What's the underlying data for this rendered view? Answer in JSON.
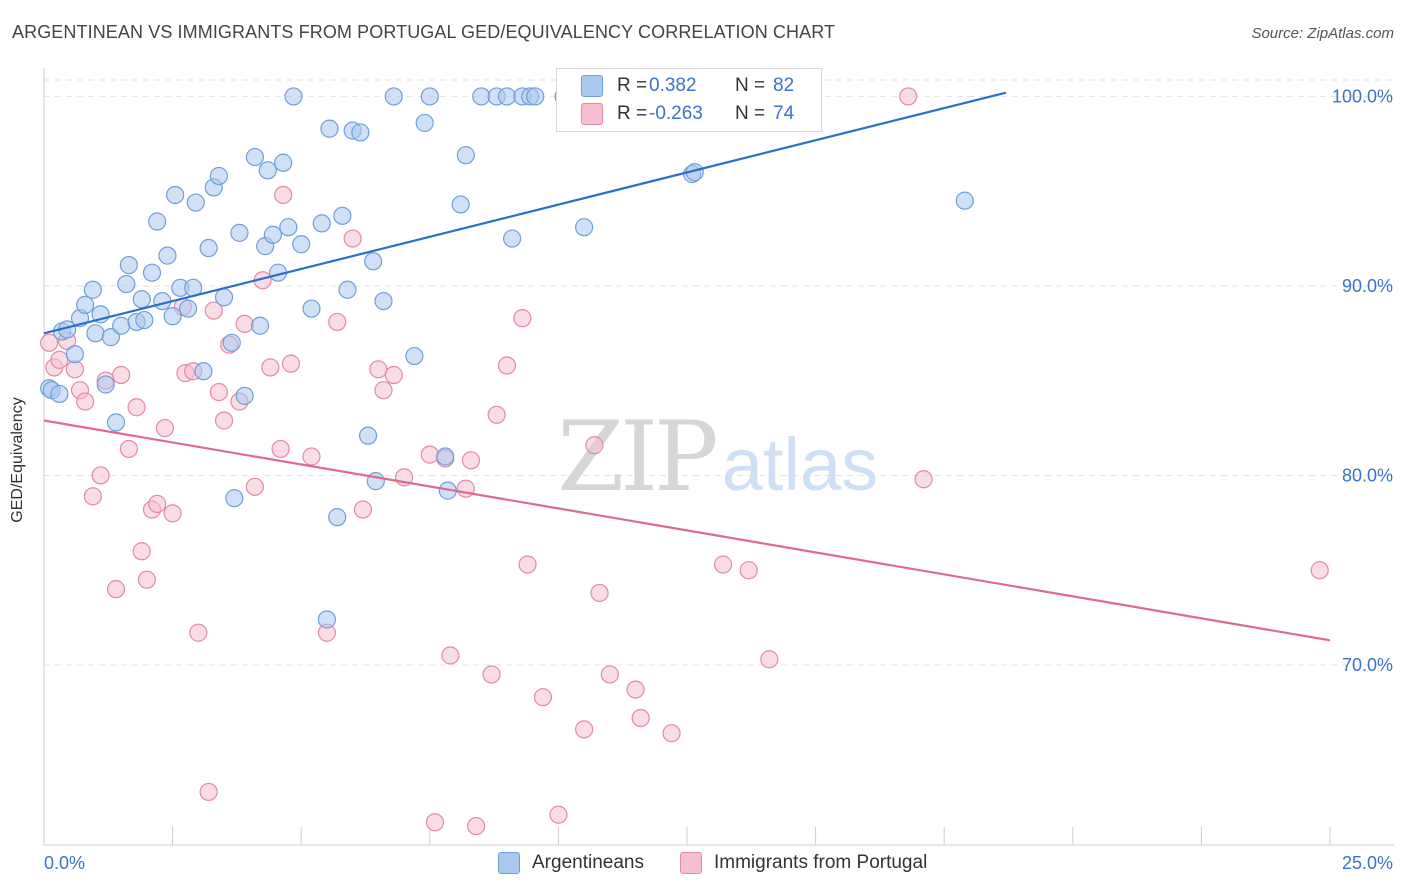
{
  "header": {
    "title": "ARGENTINEAN VS IMMIGRANTS FROM PORTUGAL GED/EQUIVALENCY CORRELATION CHART",
    "source": "Source: ZipAtlas.com"
  },
  "legend_top": {
    "rows": [
      {
        "r_label": "R =",
        "r_value": "0.382",
        "n_label": "N =",
        "n_value": "82"
      },
      {
        "r_label": "R =",
        "r_value": "-0.263",
        "n_label": "N =",
        "n_value": "74"
      }
    ]
  },
  "legend_bottom": {
    "items": [
      {
        "label": "Argentineans"
      },
      {
        "label": "Immigrants from Portugal"
      }
    ]
  },
  "colors": {
    "blue_fill": "#a9c8f0",
    "blue_stroke": "#6f9fd8",
    "blue_line": "#2a6fc9",
    "pink_fill": "#f6bfd0",
    "pink_stroke": "#e38aa6",
    "pink_line": "#e0698f",
    "tick_label": "#3a73c8",
    "grid": "#e3e3e3"
  },
  "chart_data": {
    "type": "scatter",
    "title": "ARGENTINEAN VS IMMIGRANTS FROM PORTUGAL GED/EQUIVALENCY CORRELATION CHART",
    "xlabel": "",
    "ylabel": "GED/Equivalency",
    "xlim": [
      0,
      25
    ],
    "ylim": [
      60.5,
      101.5
    ],
    "x_tick_labels": [
      "0.0%",
      "25.0%"
    ],
    "y_ticks": [
      70,
      80,
      90,
      100
    ],
    "y_tick_labels": [
      "70.0%",
      "80.0%",
      "90.0%",
      "100.0%"
    ],
    "grid": true,
    "legend_placement": "top-center",
    "watermark": "ZIPatlas",
    "series": [
      {
        "name": "Argentineans",
        "r": 0.382,
        "n": 82,
        "trend": {
          "x": [
            0,
            18.7
          ],
          "y": [
            87.5,
            100.2
          ]
        },
        "points": [
          [
            0.1,
            84.6
          ],
          [
            0.15,
            84.5
          ],
          [
            0.3,
            84.3
          ],
          [
            0.35,
            87.6
          ],
          [
            0.45,
            87.7
          ],
          [
            0.6,
            86.4
          ],
          [
            0.7,
            88.3
          ],
          [
            0.8,
            89.0
          ],
          [
            0.95,
            89.8
          ],
          [
            1.0,
            87.5
          ],
          [
            1.1,
            88.5
          ],
          [
            1.2,
            84.8
          ],
          [
            1.3,
            87.3
          ],
          [
            1.4,
            82.8
          ],
          [
            1.5,
            87.9
          ],
          [
            1.6,
            90.1
          ],
          [
            1.65,
            91.1
          ],
          [
            1.8,
            88.1
          ],
          [
            1.9,
            89.3
          ],
          [
            1.95,
            88.2
          ],
          [
            2.1,
            90.7
          ],
          [
            2.2,
            93.4
          ],
          [
            2.3,
            89.2
          ],
          [
            2.4,
            91.6
          ],
          [
            2.5,
            88.4
          ],
          [
            2.55,
            94.8
          ],
          [
            2.65,
            89.9
          ],
          [
            2.8,
            88.8
          ],
          [
            2.9,
            89.9
          ],
          [
            2.95,
            94.4
          ],
          [
            3.1,
            85.5
          ],
          [
            3.2,
            92.0
          ],
          [
            3.3,
            95.2
          ],
          [
            3.4,
            95.8
          ],
          [
            3.5,
            89.4
          ],
          [
            3.65,
            87.0
          ],
          [
            3.7,
            78.8
          ],
          [
            3.8,
            92.8
          ],
          [
            3.9,
            84.2
          ],
          [
            4.1,
            96.8
          ],
          [
            4.2,
            87.9
          ],
          [
            4.3,
            92.1
          ],
          [
            4.35,
            96.1
          ],
          [
            4.45,
            92.7
          ],
          [
            4.55,
            90.7
          ],
          [
            4.65,
            96.5
          ],
          [
            4.75,
            93.1
          ],
          [
            4.85,
            100.0
          ],
          [
            5.0,
            92.2
          ],
          [
            5.2,
            88.8
          ],
          [
            5.4,
            93.3
          ],
          [
            5.5,
            72.4
          ],
          [
            5.55,
            98.3
          ],
          [
            5.7,
            77.8
          ],
          [
            5.8,
            93.7
          ],
          [
            5.9,
            89.8
          ],
          [
            6.0,
            98.2
          ],
          [
            6.15,
            98.1
          ],
          [
            6.3,
            82.1
          ],
          [
            6.4,
            91.3
          ],
          [
            6.45,
            79.7
          ],
          [
            6.6,
            89.2
          ],
          [
            6.8,
            100.0
          ],
          [
            7.2,
            86.3
          ],
          [
            7.4,
            98.6
          ],
          [
            7.5,
            100.0
          ],
          [
            7.8,
            81.0
          ],
          [
            7.85,
            79.2
          ],
          [
            8.1,
            94.3
          ],
          [
            8.2,
            96.9
          ],
          [
            8.5,
            100.0
          ],
          [
            8.8,
            100.0
          ],
          [
            9.0,
            100.0
          ],
          [
            9.1,
            92.5
          ],
          [
            9.3,
            100.0
          ],
          [
            9.45,
            100.0
          ],
          [
            9.55,
            100.0
          ],
          [
            10.1,
            100.0
          ],
          [
            10.5,
            93.1
          ],
          [
            12.6,
            95.9
          ],
          [
            12.65,
            96.0
          ],
          [
            17.9,
            94.5
          ]
        ]
      },
      {
        "name": "Immigrants from Portugal",
        "r": -0.263,
        "n": 74,
        "trend": {
          "x": [
            0,
            25
          ],
          "y": [
            82.9,
            71.3
          ]
        },
        "points": [
          [
            0.1,
            87.0
          ],
          [
            0.2,
            85.7
          ],
          [
            0.3,
            86.1
          ],
          [
            0.45,
            87.1
          ],
          [
            0.6,
            85.6
          ],
          [
            0.7,
            84.5
          ],
          [
            0.8,
            83.9
          ],
          [
            0.95,
            78.9
          ],
          [
            1.1,
            80.0
          ],
          [
            1.2,
            85.0
          ],
          [
            1.4,
            74.0
          ],
          [
            1.5,
            85.3
          ],
          [
            1.65,
            81.4
          ],
          [
            1.8,
            83.6
          ],
          [
            1.9,
            76.0
          ],
          [
            2.0,
            74.5
          ],
          [
            2.1,
            78.2
          ],
          [
            2.2,
            78.5
          ],
          [
            2.35,
            82.5
          ],
          [
            2.5,
            78.0
          ],
          [
            2.7,
            88.9
          ],
          [
            2.75,
            85.4
          ],
          [
            2.9,
            85.5
          ],
          [
            3.0,
            71.7
          ],
          [
            3.2,
            63.3
          ],
          [
            3.3,
            88.7
          ],
          [
            3.4,
            84.4
          ],
          [
            3.5,
            82.9
          ],
          [
            3.6,
            86.9
          ],
          [
            3.8,
            83.9
          ],
          [
            3.9,
            88.0
          ],
          [
            4.1,
            79.4
          ],
          [
            4.25,
            90.3
          ],
          [
            4.4,
            85.7
          ],
          [
            4.6,
            81.4
          ],
          [
            4.65,
            94.8
          ],
          [
            4.8,
            85.9
          ],
          [
            5.2,
            81.0
          ],
          [
            5.5,
            71.7
          ],
          [
            5.7,
            88.1
          ],
          [
            6.0,
            92.5
          ],
          [
            6.2,
            78.2
          ],
          [
            6.5,
            85.6
          ],
          [
            6.6,
            84.5
          ],
          [
            6.8,
            85.3
          ],
          [
            7.0,
            79.9
          ],
          [
            7.5,
            81.1
          ],
          [
            7.6,
            61.7
          ],
          [
            7.8,
            80.9
          ],
          [
            7.9,
            70.5
          ],
          [
            8.2,
            79.3
          ],
          [
            8.3,
            80.8
          ],
          [
            8.4,
            61.5
          ],
          [
            8.7,
            69.5
          ],
          [
            8.8,
            83.2
          ],
          [
            9.0,
            85.8
          ],
          [
            9.3,
            88.3
          ],
          [
            9.4,
            75.3
          ],
          [
            9.7,
            68.3
          ],
          [
            10.0,
            62.1
          ],
          [
            10.5,
            66.6
          ],
          [
            10.7,
            81.6
          ],
          [
            10.8,
            73.8
          ],
          [
            11.0,
            69.5
          ],
          [
            11.5,
            68.7
          ],
          [
            11.6,
            67.2
          ],
          [
            12.2,
            66.4
          ],
          [
            13.2,
            75.3
          ],
          [
            13.7,
            75.0
          ],
          [
            13.8,
            100.0
          ],
          [
            14.1,
            70.3
          ],
          [
            16.8,
            100.0
          ],
          [
            17.1,
            79.8
          ],
          [
            24.8,
            75.0
          ]
        ]
      }
    ]
  }
}
